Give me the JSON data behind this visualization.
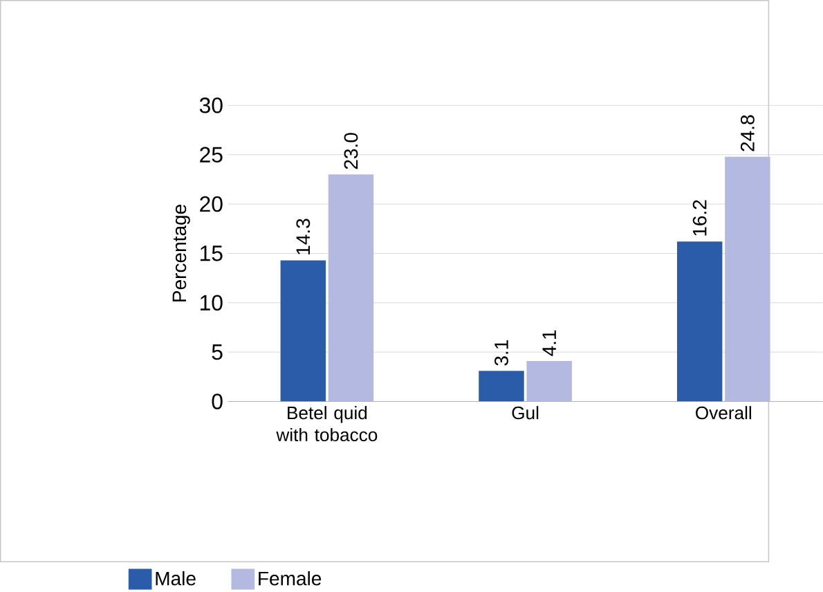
{
  "chart_data": {
    "type": "bar",
    "ylabel": "Percentage",
    "categories": [
      "Betel quid with tobacco",
      "Gul",
      "Overall"
    ],
    "series": [
      {
        "name": "Male",
        "color": "#2b5ca9",
        "values": [
          14.3,
          3.1,
          16.2
        ],
        "value_labels": [
          "14.3",
          "3.1",
          "16.2"
        ]
      },
      {
        "name": "Female",
        "color": "#b3b9e0",
        "values": [
          23.0,
          4.1,
          24.8
        ],
        "value_labels": [
          "23.0",
          "4.1",
          "24.8"
        ]
      }
    ],
    "ylim": [
      0,
      30
    ],
    "yticks": [
      0,
      5,
      10,
      15,
      20,
      25,
      30
    ],
    "grid": "y",
    "legend": "bottom left"
  }
}
